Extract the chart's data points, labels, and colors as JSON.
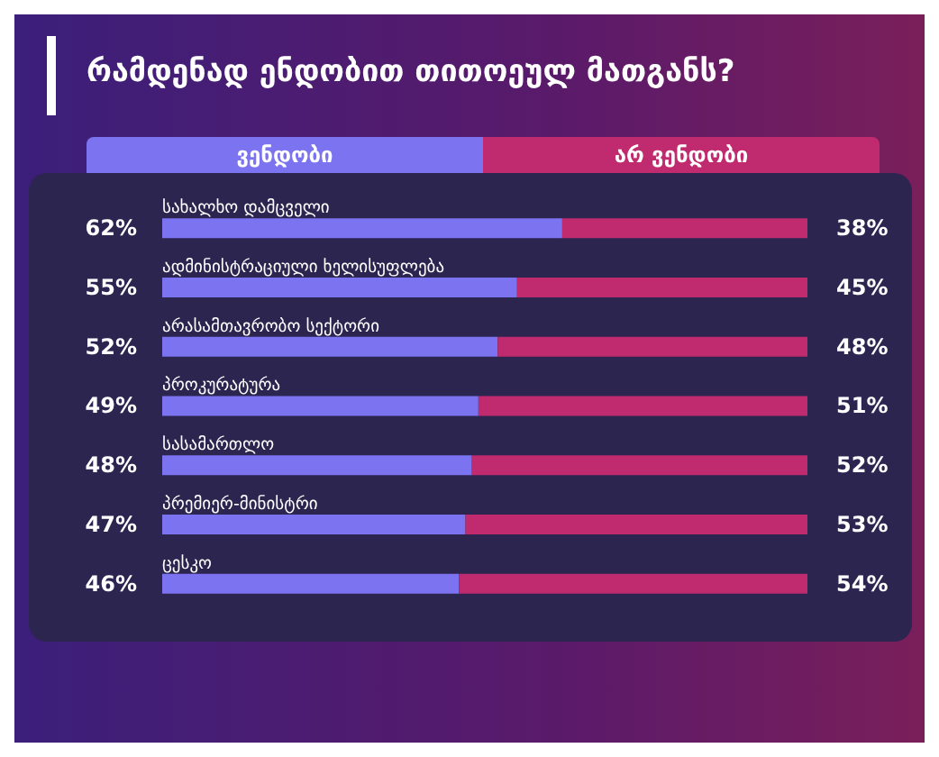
{
  "chart_data": {
    "type": "bar",
    "orientation": "horizontal",
    "stacked": true,
    "title": "რამდენად ენდობით თითოეულ მათგანს?",
    "categories": [
      "სახალხო დამცველი",
      "ადმინისტრაციული ხელისუფლება",
      "არასამთავრობო სექტორი",
      "პროკურატურა",
      "სასამართლო",
      "პრემიერ-მინისტრი",
      "ცესკო"
    ],
    "series": [
      {
        "name": "ვენდობი",
        "color": "#7b73f0",
        "values": [
          62,
          55,
          52,
          49,
          48,
          47,
          46
        ],
        "value_labels": [
          "62%",
          "55%",
          "52%",
          "49%",
          "48%",
          "47%",
          "46%"
        ]
      },
      {
        "name": "არ ვენდობი",
        "color": "#c02a6e",
        "values": [
          38,
          45,
          48,
          51,
          52,
          53,
          54
        ],
        "value_labels": [
          "38%",
          "45%",
          "48%",
          "51%",
          "52%",
          "53%",
          "54%"
        ]
      }
    ],
    "legend": "top",
    "grid": false,
    "tick_labels": false
  }
}
